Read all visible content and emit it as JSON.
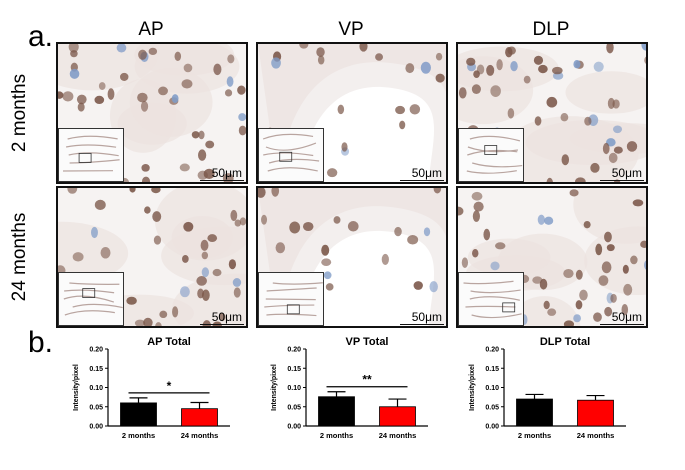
{
  "panel_labels": {
    "a": "a.",
    "b": "b."
  },
  "columns": [
    "AP",
    "VP",
    "DLP"
  ],
  "rows": [
    "2 months",
    "24 months"
  ],
  "scale_bar": "50μm",
  "colors": {
    "two_months": "#000000",
    "twentyfour_months": "#ff0000",
    "tissue_bg": "#efe8e5",
    "nucleus": "#7a5648",
    "counterstain": "#7f9bc7"
  },
  "chart_data": [
    {
      "type": "bar",
      "title": "AP Total",
      "ylabel": "Intensity/pixel",
      "categories": [
        "2 months",
        "24 months"
      ],
      "values": [
        0.06,
        0.045
      ],
      "errors": [
        0.013,
        0.016
      ],
      "ylim": [
        0,
        0.2
      ],
      "yticks": [
        "0.00",
        "0.05",
        "0.10",
        "0.15",
        "0.20"
      ],
      "significance": "*"
    },
    {
      "type": "bar",
      "title": "VP Total",
      "ylabel": "Intensity/pixel",
      "categories": [
        "2 months",
        "24 months"
      ],
      "values": [
        0.076,
        0.05
      ],
      "errors": [
        0.013,
        0.02
      ],
      "ylim": [
        0,
        0.2
      ],
      "yticks": [
        "0.00",
        "0.05",
        "0.10",
        "0.15",
        "0.20"
      ],
      "significance": "**"
    },
    {
      "type": "bar",
      "title": "DLP Total",
      "ylabel": "Intensity/pixel",
      "categories": [
        "2 months",
        "24 months"
      ],
      "values": [
        0.07,
        0.067
      ],
      "errors": [
        0.012,
        0.012
      ],
      "ylim": [
        0,
        0.2
      ],
      "yticks": [
        "0.00",
        "0.05",
        "0.10",
        "0.15",
        "0.20"
      ],
      "significance": ""
    }
  ]
}
